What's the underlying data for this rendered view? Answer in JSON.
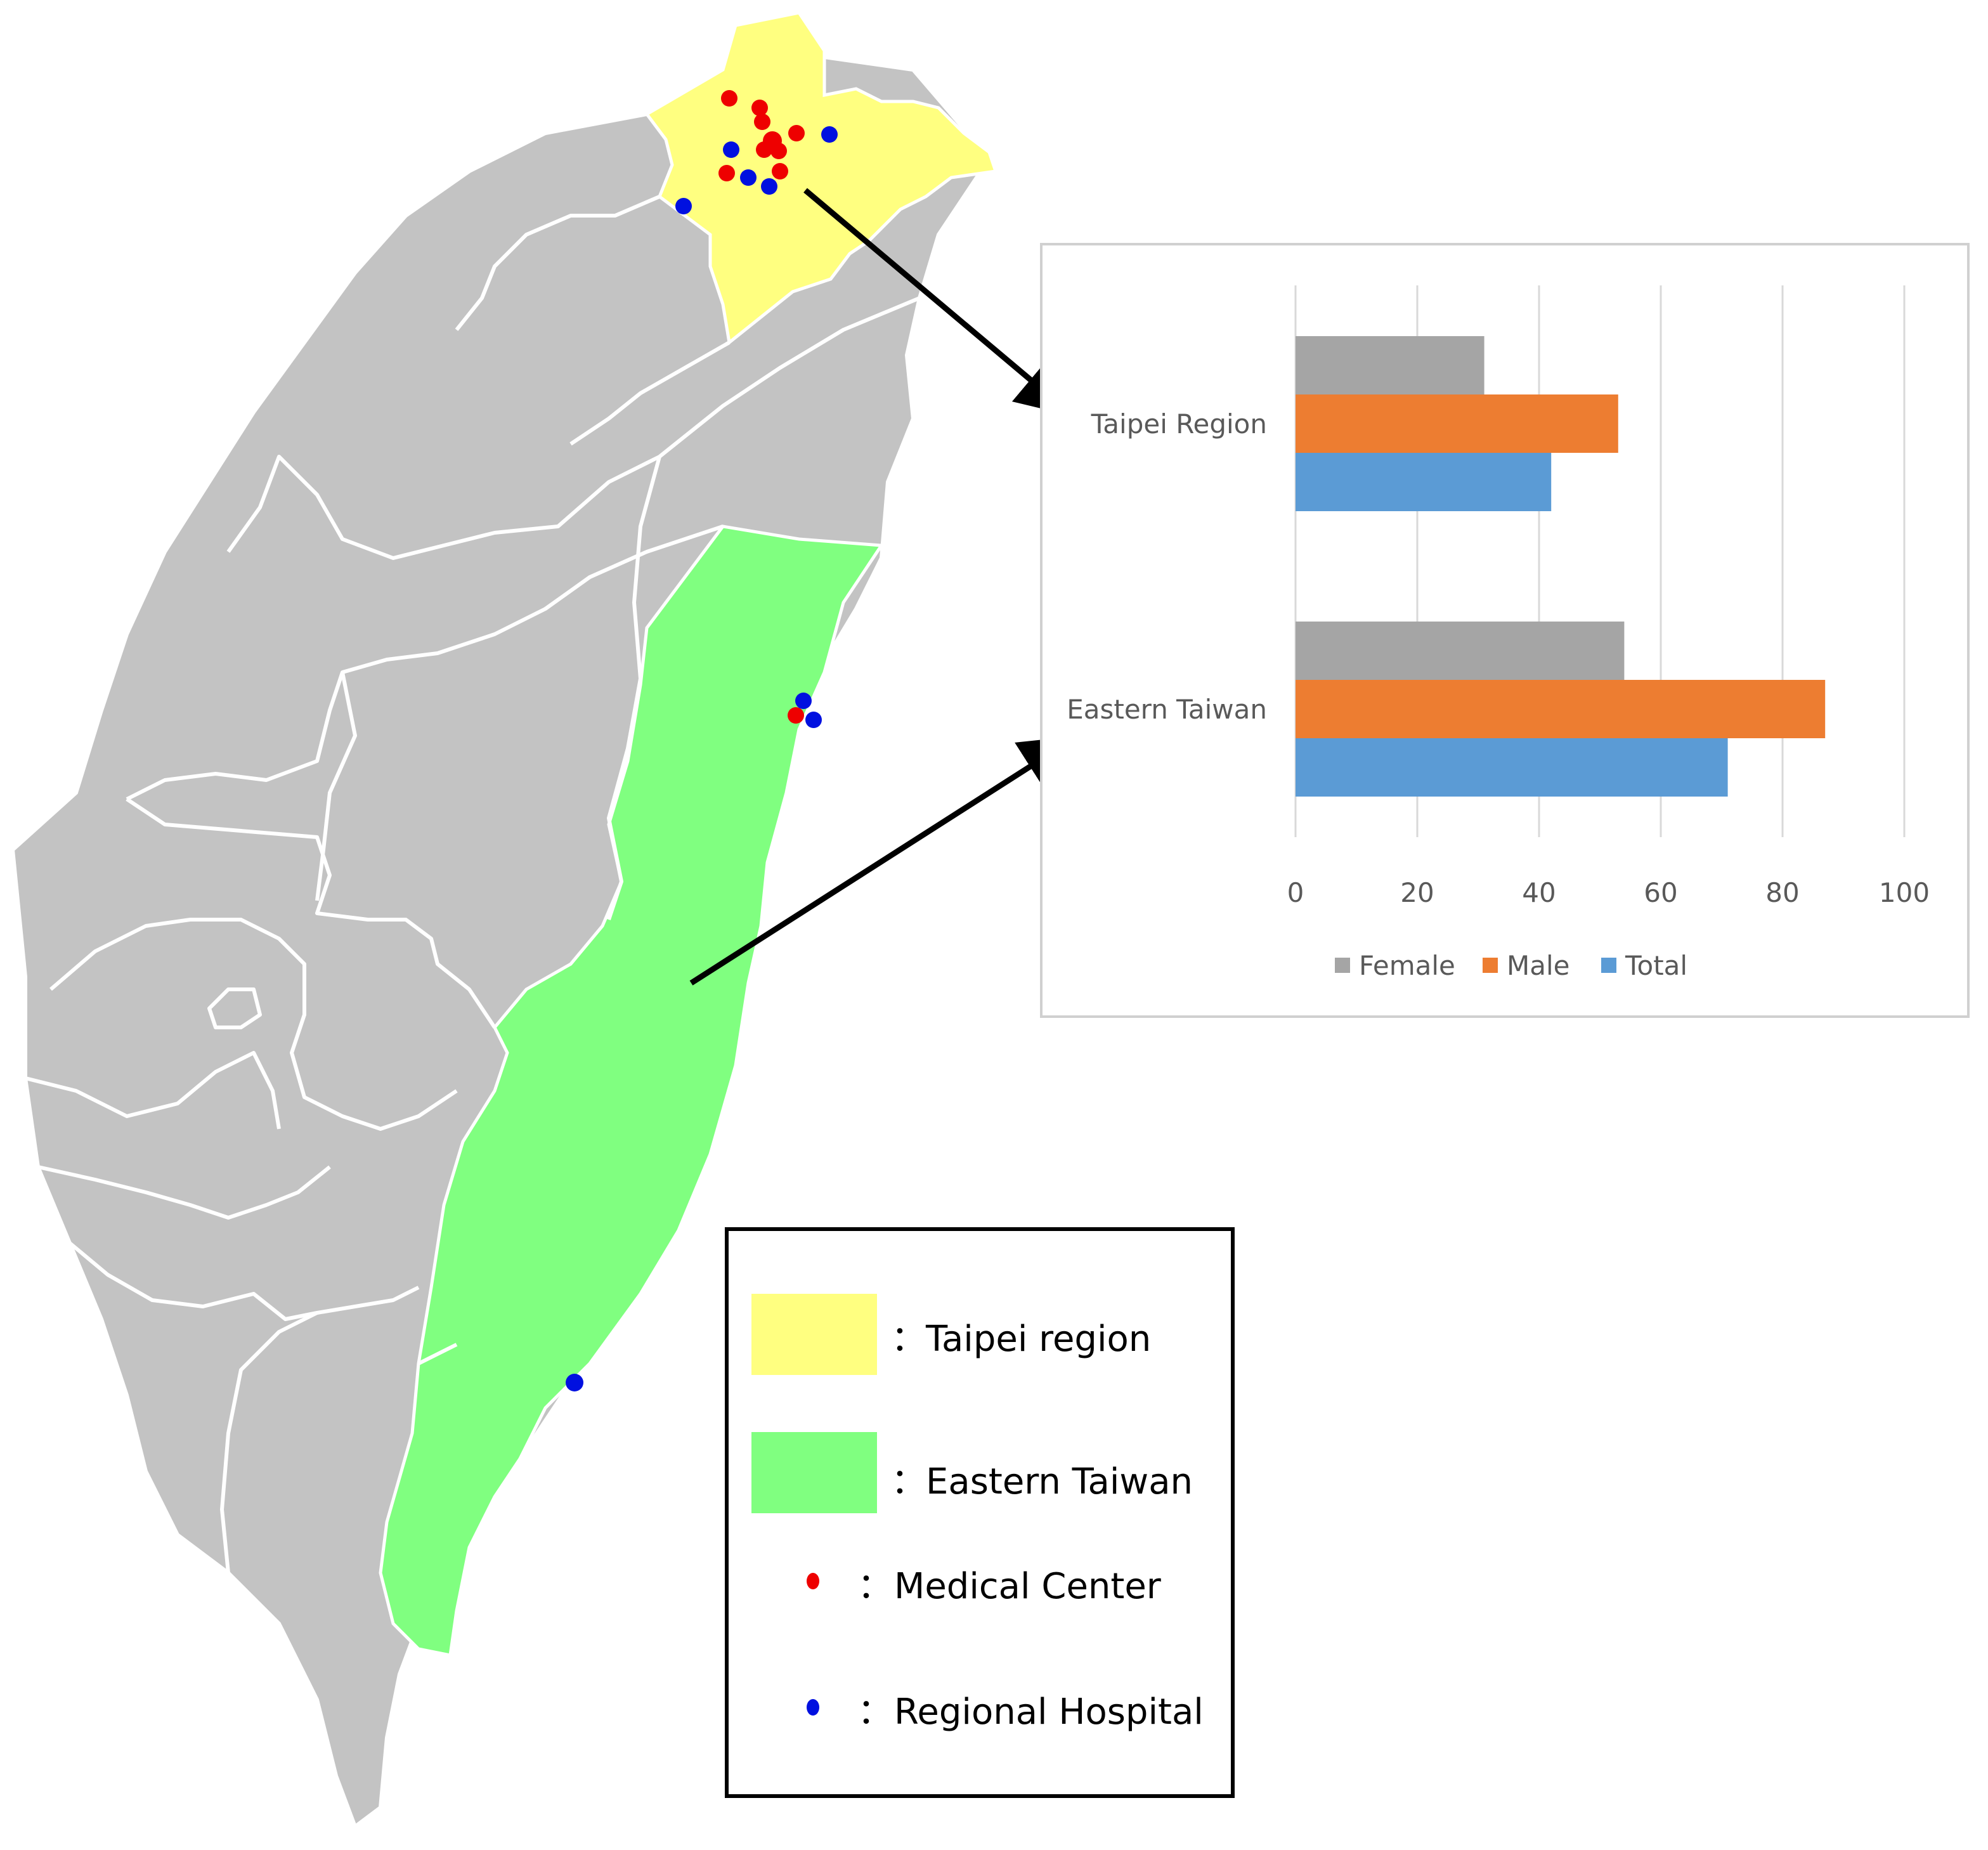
{
  "colors": {
    "land": "#c3c3c3",
    "border": "#ffffff",
    "taipei_region": "#ffff80",
    "eastern_taiwan": "#80ff80",
    "medical_center": "#ee0000",
    "regional_hospital": "#0010e0",
    "female": "#a5a5a5",
    "male": "#ed7d31",
    "total": "#5b9bd5",
    "gridline": "#d9d9d9",
    "chart_frame": "#d0d0d0"
  },
  "map_legend": {
    "taipei_region_label": "Taipei region",
    "eastern_taiwan_label": "Eastern Taiwan",
    "medical_center_label": "Medical Center",
    "regional_hospital_label": "Regional Hospital",
    "separator": "："
  },
  "chart_data": {
    "type": "bar",
    "orientation": "horizontal",
    "title": "",
    "xlabel": "",
    "ylabel": "",
    "categories": [
      "Taipei Region",
      "Eastern Taiwan"
    ],
    "series": [
      {
        "name": "Female",
        "values": [
          31,
          54
        ]
      },
      {
        "name": "Male",
        "values": [
          53,
          87
        ]
      },
      {
        "name": "Total",
        "values": [
          42,
          71
        ]
      }
    ],
    "xlim": [
      0,
      100
    ],
    "xticks": [
      "0",
      "20",
      "40",
      "60",
      "80",
      "100"
    ],
    "grid": true,
    "legend": "bottom"
  }
}
